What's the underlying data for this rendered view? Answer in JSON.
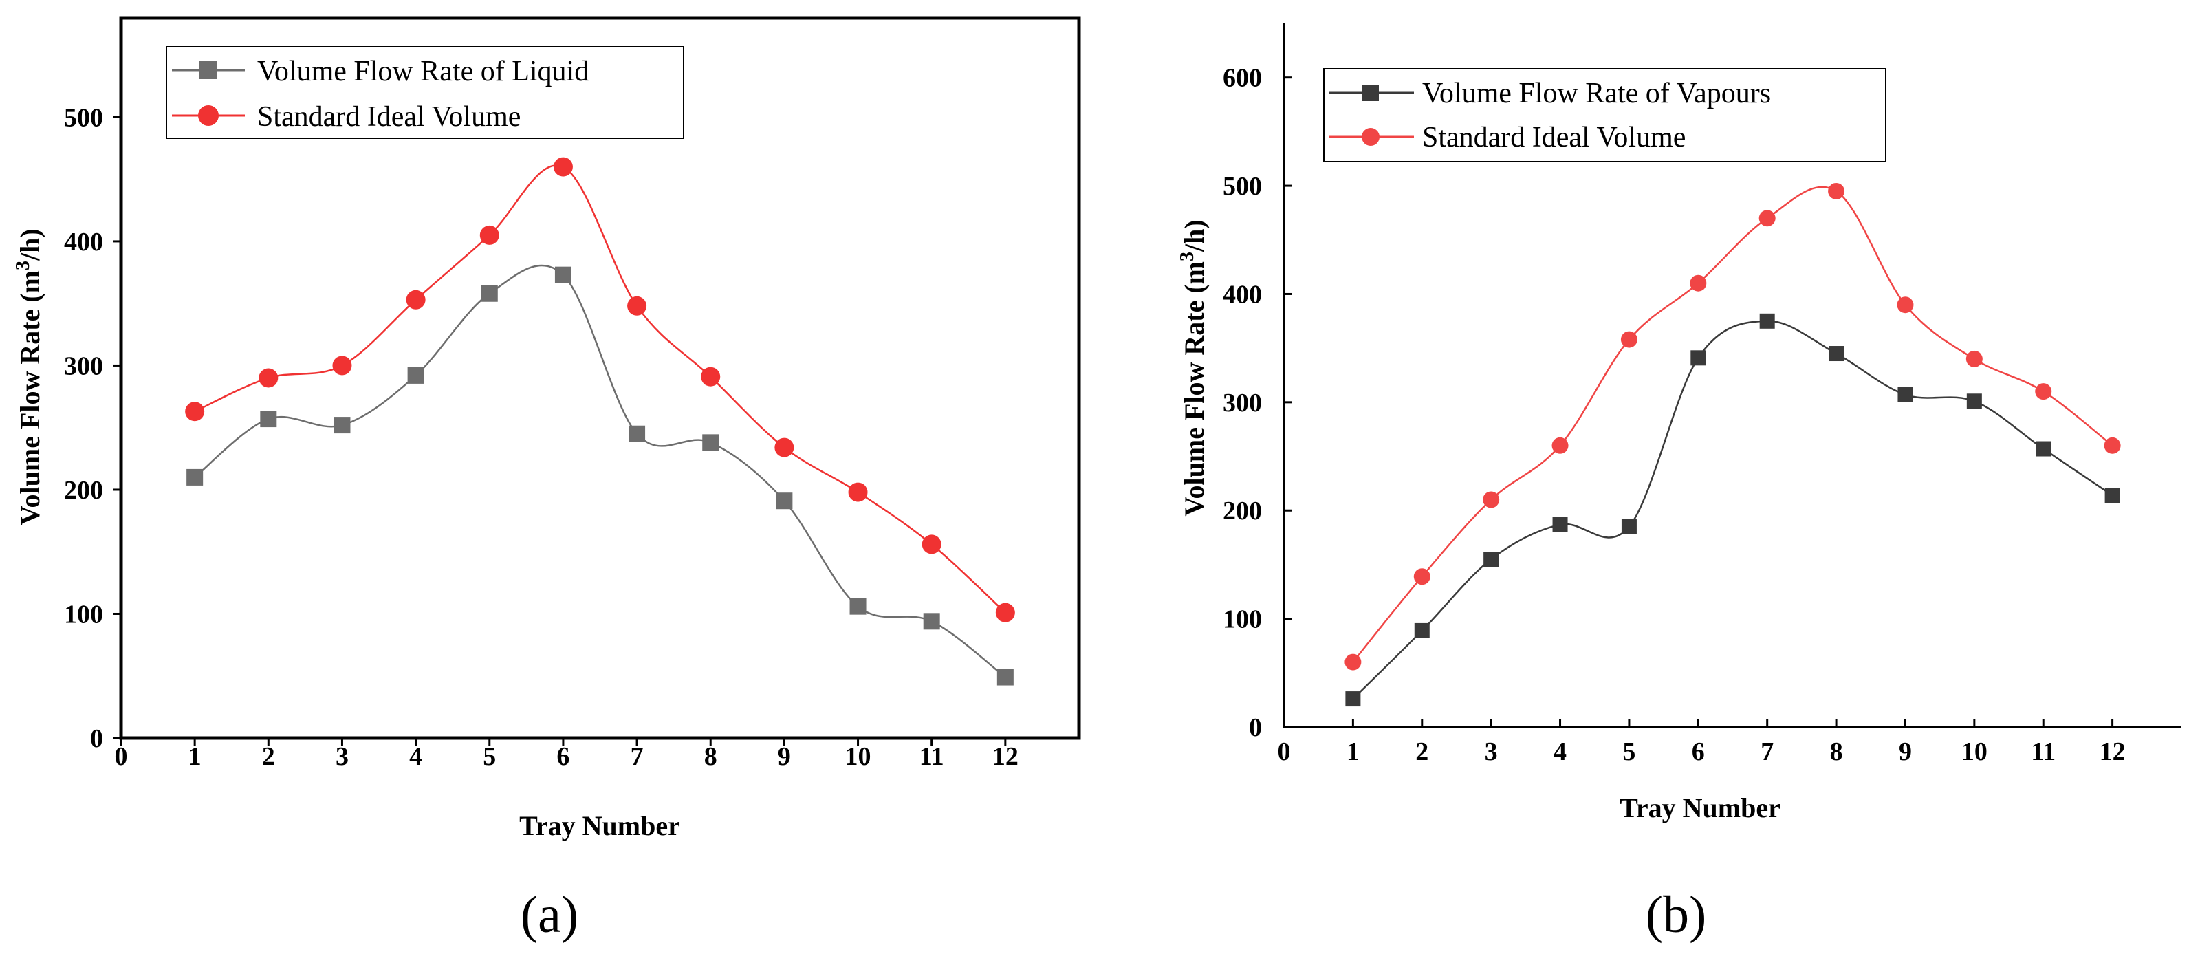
{
  "chart_data": [
    {
      "type": "line",
      "panel_label": "(a)",
      "xlabel": "Tray Number",
      "ylabel_main": "Volume Flow Rate (m",
      "ylabel_sup": "3",
      "ylabel_tail": "/h)",
      "xlim": [
        0,
        13
      ],
      "ylim": [
        0,
        580
      ],
      "xticks": [
        0,
        1,
        2,
        3,
        4,
        5,
        6,
        7,
        8,
        9,
        10,
        11,
        12
      ],
      "yticks": [
        0,
        100,
        200,
        300,
        400,
        500
      ],
      "legend_position": "top-left",
      "series": [
        {
          "name": "Volume Flow Rate of Liquid",
          "color": "#6d6d6d",
          "marker": "square",
          "x": [
            1,
            2,
            3,
            4,
            5,
            6,
            7,
            8,
            9,
            10,
            11,
            12
          ],
          "values": [
            210,
            257,
            252,
            292,
            358,
            373,
            245,
            238,
            191,
            106,
            94,
            49
          ]
        },
        {
          "name": "Standard Ideal Volume",
          "color": "#f03232",
          "marker": "circle",
          "x": [
            1,
            2,
            3,
            4,
            5,
            6,
            7,
            8,
            9,
            10,
            11,
            12
          ],
          "values": [
            263,
            290,
            300,
            353,
            405,
            460,
            348,
            291,
            234,
            198,
            156,
            101
          ]
        }
      ]
    },
    {
      "type": "line",
      "panel_label": "(b)",
      "xlabel": "Tray Number",
      "ylabel_main": "Volume Flow Rate (m",
      "ylabel_sup": "3",
      "ylabel_tail": "/h)",
      "xlim": [
        0,
        13
      ],
      "ylim": [
        0,
        650
      ],
      "xticks": [
        0,
        1,
        2,
        3,
        4,
        5,
        6,
        7,
        8,
        9,
        10,
        11,
        12
      ],
      "yticks": [
        0,
        100,
        200,
        300,
        400,
        500,
        600
      ],
      "legend_position": "top-left",
      "series": [
        {
          "name": "Volume Flow Rate of Vapours",
          "color": "#3a3a3a",
          "marker": "square",
          "x": [
            1,
            2,
            3,
            4,
            5,
            6,
            7,
            8,
            9,
            10,
            11,
            12
          ],
          "values": [
            26,
            89,
            155,
            187,
            185,
            341,
            375,
            345,
            307,
            301,
            257,
            214
          ]
        },
        {
          "name": "Standard Ideal Volume",
          "color": "#f04545",
          "marker": "circle",
          "x": [
            1,
            2,
            3,
            4,
            5,
            6,
            7,
            8,
            9,
            10,
            11,
            12
          ],
          "values": [
            60,
            139,
            210,
            260,
            358,
            410,
            470,
            495,
            390,
            340,
            310,
            260
          ]
        }
      ]
    }
  ]
}
